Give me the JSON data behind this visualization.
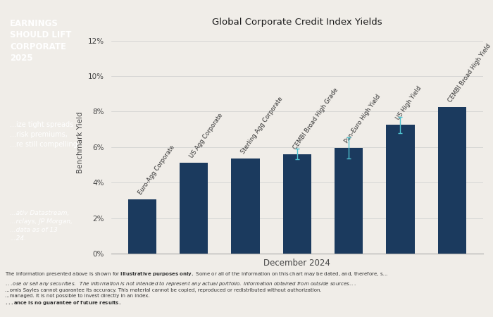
{
  "title": "Global Corporate Credit Index Yields",
  "xlabel": "December 2024",
  "ylabel": "Benchmark Yield",
  "labels_above": [
    "Euro-Agg Corporate",
    "US Agg Corporate",
    "Sterling Agg Corporate",
    "CEMBI Broad High Grade",
    "Pan-Euro High Yield",
    "US High Yield",
    "CEMBI Broad High Yield"
  ],
  "values": [
    3.05,
    5.1,
    5.35,
    5.6,
    5.95,
    7.25,
    8.25
  ],
  "error_bars": [
    0.0,
    0.0,
    0.0,
    0.3,
    0.6,
    0.45,
    0.0
  ],
  "bar_color": "#1b3a5e",
  "error_color": "#4fc3d0",
  "bg_color": "#f0ede8",
  "ylim_max": 0.125,
  "yticks": [
    0.0,
    0.02,
    0.04,
    0.06,
    0.08,
    0.1,
    0.12
  ],
  "ytick_labels": [
    "0%",
    "2%",
    "4%",
    "6%",
    "8%",
    "10%",
    "12%"
  ],
  "sidebar_bg": "#1e6e8e",
  "sidebar_title_line1": "EARNINGS",
  "sidebar_title_line2": "SHOULD LIFT",
  "sidebar_title_line3": "CORPORATE",
  "sidebar_title_line4": "2025",
  "sidebar_body_lines": [
    "...ize tight spreads",
    "...risk premiums,",
    "...re still compelling"
  ],
  "sidebar_source_lines": [
    "...ativ Datastream,",
    "...rclays, JP Morgan,",
    "...data as of 13",
    "...24."
  ],
  "footnote_line1": "The information presented above is shown for ",
  "footnote_line1_bold": "illustrative purposes only.",
  "footnote_line1_rest": " Some or all of the information on this chart may be dated, and, therefore, s...",
  "footnote_line2": "...ose or sell any securities.  The information is not intended to represent any actual portfolio. Information obtained from outside sources...",
  "footnote_line3": "...omis Sayles cannot guarantee its accuracy. This material cannot be copied, reproduced or redistributed without authorization.",
  "footnote_line4": "...managed. It is not possible to invest directly in an index.",
  "footnote_line5_bold": "...ance is no guarantee of future results.",
  "title_fontsize": 9.5,
  "axis_label_fontsize": 7.5,
  "tick_fontsize": 7.5,
  "bar_label_fontsize": 6.0
}
